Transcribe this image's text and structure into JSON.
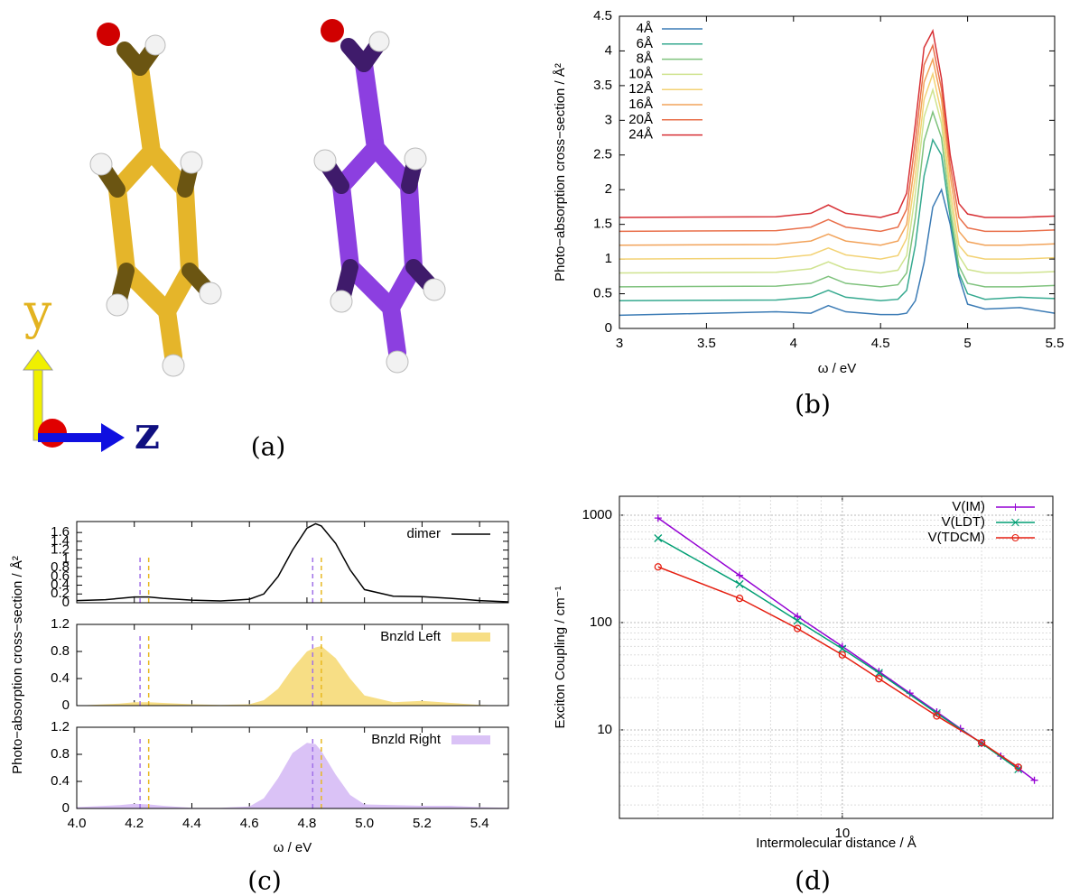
{
  "figure": {
    "panel_labels": [
      "(a)",
      "(b)",
      "(c)",
      "(d)"
    ],
    "axis_y": "y",
    "axis_z": "z"
  },
  "chart_data": [
    {
      "type": "line",
      "xlabel": "ω / eV",
      "ylabel": "Photo−absorption cross−section / Å²",
      "legend": "top-left",
      "grid": false,
      "xlim": [
        3,
        5.5
      ],
      "xticks": [
        3,
        3.5,
        4,
        4.5,
        5,
        5.5
      ],
      "ylim": [
        0,
        4.5
      ],
      "yticks": [
        0,
        0.5,
        1,
        1.5,
        2,
        2.5,
        3,
        3.5,
        4,
        4.5
      ],
      "x": [
        3,
        3.9,
        4.1,
        4.2,
        4.3,
        4.5,
        4.6,
        4.65,
        4.7,
        4.75,
        4.8,
        4.85,
        4.9,
        4.95,
        5.0,
        5.1,
        5.3,
        5.5
      ],
      "series": [
        {
          "name": "4Å",
          "color": "#3b7bb5",
          "values": [
            0.19,
            0.24,
            0.22,
            0.33,
            0.24,
            0.2,
            0.2,
            0.22,
            0.4,
            0.95,
            1.75,
            2.0,
            1.5,
            0.75,
            0.35,
            0.28,
            0.3,
            0.22
          ]
        },
        {
          "name": "6Å",
          "color": "#35a98f",
          "values": [
            0.4,
            0.41,
            0.45,
            0.55,
            0.45,
            0.4,
            0.42,
            0.55,
            1.2,
            2.2,
            2.72,
            2.5,
            1.6,
            0.8,
            0.5,
            0.42,
            0.45,
            0.43
          ]
        },
        {
          "name": "8Å",
          "color": "#7fc27d",
          "values": [
            0.6,
            0.61,
            0.65,
            0.75,
            0.65,
            0.6,
            0.63,
            0.8,
            1.6,
            2.7,
            3.12,
            2.75,
            1.7,
            0.9,
            0.65,
            0.6,
            0.6,
            0.62
          ]
        },
        {
          "name": "10Å",
          "color": "#cfe38f",
          "values": [
            0.8,
            0.81,
            0.86,
            0.96,
            0.86,
            0.8,
            0.84,
            1.05,
            1.95,
            3.05,
            3.44,
            2.95,
            1.85,
            1.05,
            0.85,
            0.8,
            0.8,
            0.82
          ]
        },
        {
          "name": "12Å",
          "color": "#f3d274",
          "values": [
            1.0,
            1.01,
            1.06,
            1.16,
            1.06,
            1.0,
            1.05,
            1.3,
            2.2,
            3.3,
            3.67,
            3.1,
            2.0,
            1.2,
            1.05,
            1.0,
            1.0,
            1.02
          ]
        },
        {
          "name": "16Å",
          "color": "#f2a35a",
          "values": [
            1.2,
            1.21,
            1.26,
            1.36,
            1.26,
            1.2,
            1.26,
            1.5,
            2.45,
            3.55,
            3.88,
            3.3,
            2.2,
            1.4,
            1.25,
            1.2,
            1.2,
            1.22
          ]
        },
        {
          "name": "20Å",
          "color": "#e96f4a",
          "values": [
            1.4,
            1.41,
            1.46,
            1.57,
            1.46,
            1.4,
            1.46,
            1.72,
            2.7,
            3.8,
            4.08,
            3.45,
            2.35,
            1.6,
            1.45,
            1.4,
            1.4,
            1.42
          ]
        },
        {
          "name": "24Å",
          "color": "#d73035",
          "values": [
            1.6,
            1.61,
            1.66,
            1.78,
            1.66,
            1.6,
            1.67,
            1.95,
            2.95,
            4.05,
            4.29,
            3.6,
            2.5,
            1.8,
            1.65,
            1.6,
            1.6,
            1.62
          ]
        }
      ]
    },
    {
      "type": "line",
      "legend": "top-right",
      "grid": false,
      "xlim": [
        4,
        5.5
      ],
      "ylim": [
        0,
        1.85
      ],
      "yticks": [
        0,
        0.2,
        0.4,
        0.6,
        0.8,
        1,
        1.2,
        1.4,
        1.6
      ],
      "x": [
        4.0,
        4.1,
        4.15,
        4.2,
        4.25,
        4.3,
        4.4,
        4.5,
        4.6,
        4.65,
        4.7,
        4.75,
        4.8,
        4.83,
        4.85,
        4.9,
        4.95,
        5.0,
        5.1,
        5.2,
        5.3,
        5.4,
        5.5
      ],
      "series": [
        {
          "name": "dimer",
          "color": "#000000",
          "values": [
            0.05,
            0.07,
            0.1,
            0.13,
            0.13,
            0.1,
            0.06,
            0.04,
            0.08,
            0.2,
            0.6,
            1.2,
            1.7,
            1.8,
            1.75,
            1.35,
            0.75,
            0.3,
            0.15,
            0.14,
            0.1,
            0.05,
            0.02
          ]
        }
      ],
      "dashed_lines": [
        {
          "x": 4.22,
          "y": 1.05,
          "color": "#a070e8"
        },
        {
          "x": 4.25,
          "y": 1.05,
          "color": "#e8b820"
        },
        {
          "x": 4.82,
          "y": 1.05,
          "color": "#a070e8"
        },
        {
          "x": 4.85,
          "y": 1.05,
          "color": "#e8b820"
        }
      ]
    },
    {
      "type": "area",
      "legend": "top-right",
      "grid": false,
      "ylabel": "Photo−absorption cross−section / Å²",
      "xlim": [
        4,
        5.5
      ],
      "ylim": [
        0,
        1.2
      ],
      "yticks": [
        0,
        0.4,
        0.8,
        1.2
      ],
      "x": [
        4.0,
        4.1,
        4.15,
        4.2,
        4.25,
        4.3,
        4.4,
        4.5,
        4.6,
        4.65,
        4.7,
        4.75,
        4.8,
        4.83,
        4.85,
        4.9,
        4.95,
        5.0,
        5.1,
        5.2,
        5.3,
        5.4,
        5.5
      ],
      "series": [
        {
          "name": "Bnzld Left",
          "color": "#f7de85",
          "values": [
            0,
            0.02,
            0.03,
            0.05,
            0.05,
            0.04,
            0.02,
            0.01,
            0.02,
            0.08,
            0.25,
            0.55,
            0.8,
            0.86,
            0.88,
            0.7,
            0.4,
            0.15,
            0.05,
            0.07,
            0.04,
            0.01,
            0
          ]
        }
      ],
      "dashed_lines": [
        {
          "x": 4.22,
          "y": 1.07,
          "color": "#a070e8"
        },
        {
          "x": 4.25,
          "y": 1.07,
          "color": "#e8b820"
        },
        {
          "x": 4.82,
          "y": 1.07,
          "color": "#a070e8"
        },
        {
          "x": 4.85,
          "y": 1.07,
          "color": "#e8b820"
        }
      ]
    },
    {
      "type": "area",
      "legend": "top-right",
      "grid": false,
      "xlabel": "ω / eV",
      "xlim": [
        4,
        5.5
      ],
      "xticks": [
        {
          "value": 4,
          "label": "4.0"
        },
        4.2,
        4.4,
        4.6,
        4.8,
        {
          "value": 5,
          "label": "5.0"
        },
        5.2,
        5.4
      ],
      "ylim": [
        0,
        1.2
      ],
      "yticks": [
        0,
        0.4,
        0.8,
        1.2
      ],
      "x": [
        4.0,
        4.1,
        4.15,
        4.2,
        4.25,
        4.3,
        4.4,
        4.5,
        4.6,
        4.65,
        4.7,
        4.75,
        4.8,
        4.83,
        4.85,
        4.9,
        4.95,
        5.0,
        5.1,
        5.2,
        5.3,
        5.4,
        5.5
      ],
      "series": [
        {
          "name": "Bnzld Right",
          "color": "#dac2f6",
          "values": [
            0.02,
            0.04,
            0.05,
            0.07,
            0.06,
            0.04,
            0.01,
            0.01,
            0.03,
            0.15,
            0.45,
            0.82,
            0.97,
            0.95,
            0.85,
            0.5,
            0.2,
            0.06,
            0.05,
            0.04,
            0.04,
            0.02,
            0.01
          ]
        }
      ],
      "dashed_lines": [
        {
          "x": 4.22,
          "y": 1.07,
          "color": "#a070e8"
        },
        {
          "x": 4.25,
          "y": 1.07,
          "color": "#e8b820"
        },
        {
          "x": 4.82,
          "y": 1.07,
          "color": "#a070e8"
        },
        {
          "x": 4.85,
          "y": 1.07,
          "color": "#e8b820"
        }
      ]
    },
    {
      "type": "line",
      "xlabel": "Intermolecular distance / Å",
      "ylabel": "Exciton Coupling / cm⁻¹",
      "legend": "top-right",
      "grid": true,
      "log_x": true,
      "log_y": true,
      "xlim": [
        3.3,
        28.5
      ],
      "xticks": [
        10
      ],
      "ylim": [
        1.5,
        1500
      ],
      "yticks": [
        10,
        100,
        1000
      ],
      "series": [
        {
          "name": "V(IM)",
          "color": "#9400d3",
          "marker": "plus",
          "x": [
            4,
            6,
            8,
            10,
            12,
            14,
            16,
            18,
            20,
            22,
            24,
            26
          ],
          "values": [
            940,
            275,
            114,
            60,
            35,
            22,
            14.7,
            10.3,
            7.5,
            5.7,
            4.4,
            3.4
          ]
        },
        {
          "name": "V(LDT)",
          "color": "#009e73",
          "marker": "cross",
          "x": [
            4,
            6,
            8,
            10,
            12,
            16,
            20,
            24
          ],
          "values": [
            610,
            228,
            104,
            57,
            34,
            14.3,
            7.5,
            4.3
          ]
        },
        {
          "name": "V(TDCM)",
          "color": "#e51e10",
          "marker": "circle",
          "x": [
            4,
            6,
            8,
            10,
            12,
            16,
            20,
            24
          ],
          "values": [
            330,
            168,
            88,
            50,
            30,
            13.5,
            7.6,
            4.5
          ]
        }
      ]
    }
  ]
}
